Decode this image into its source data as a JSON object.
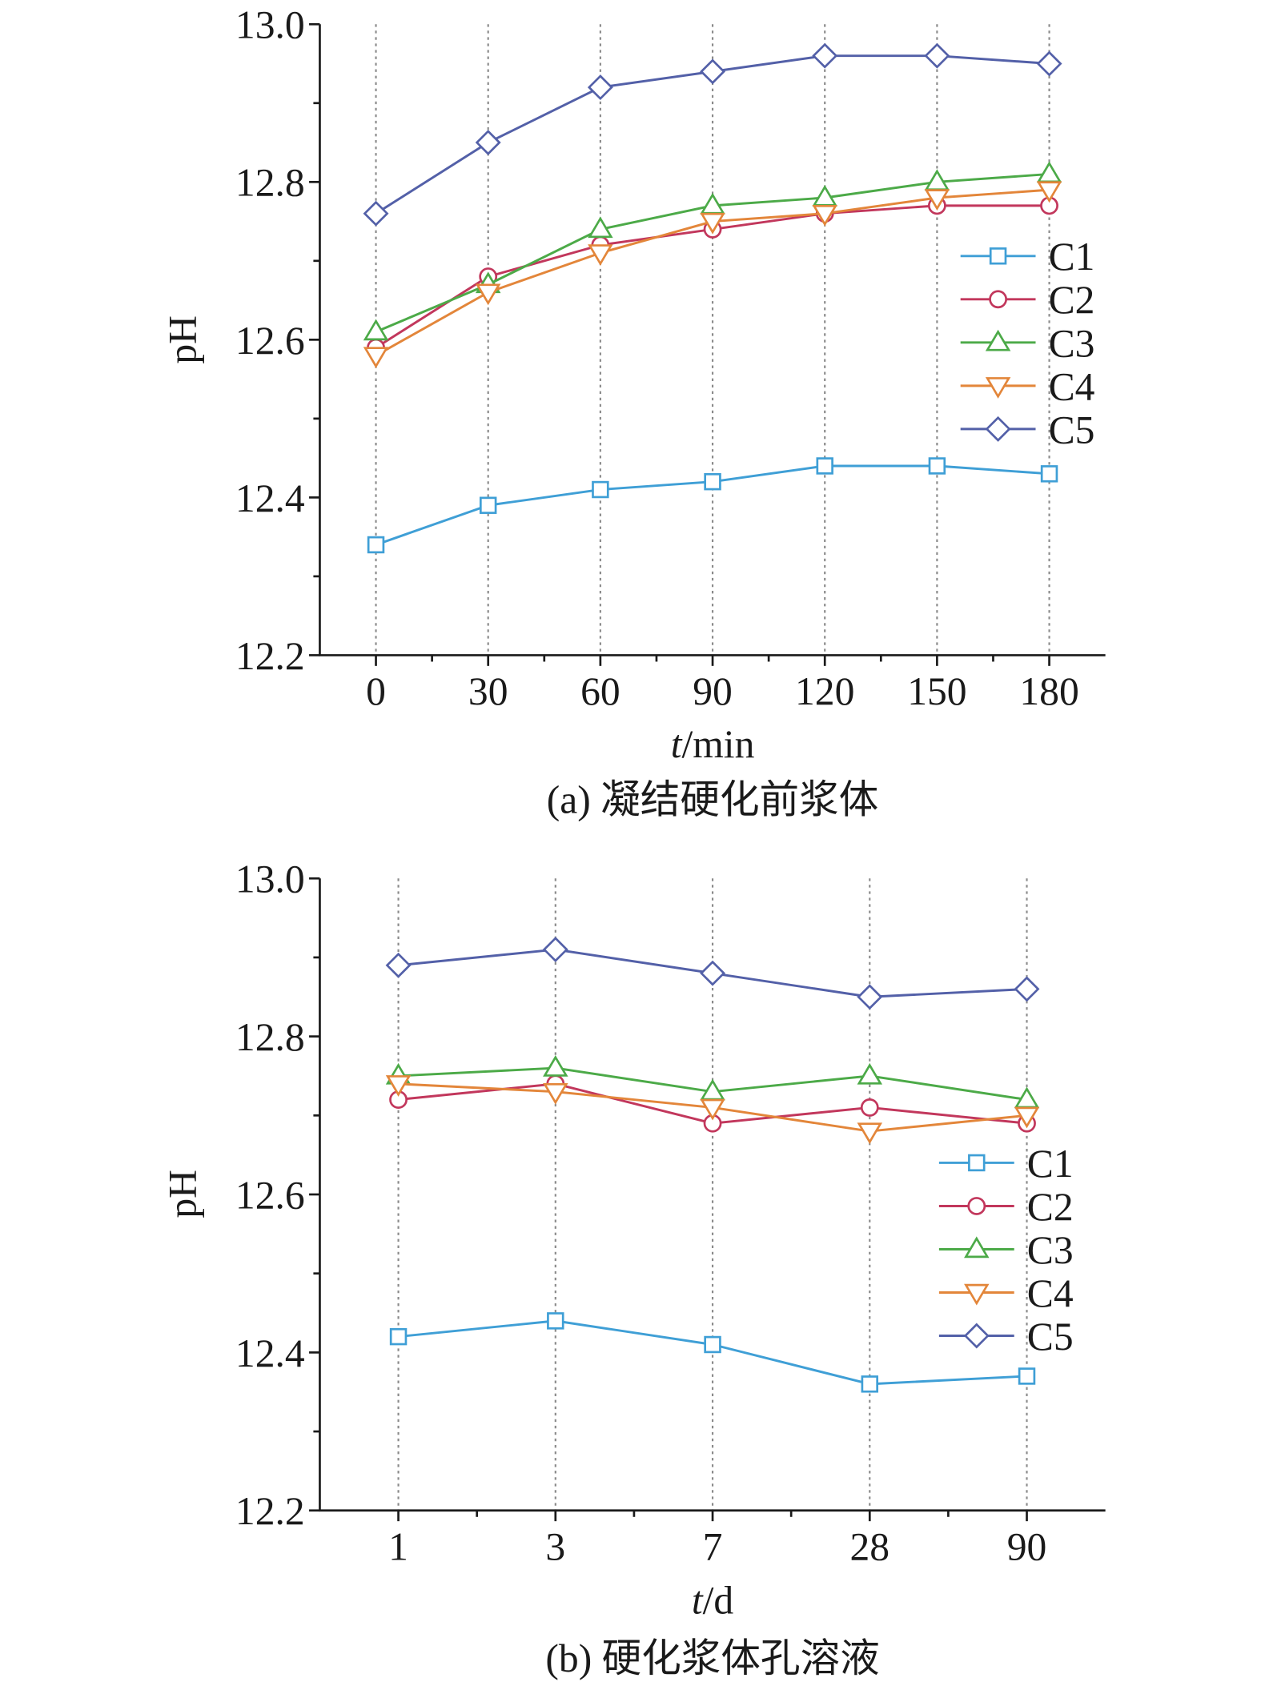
{
  "chart_data": [
    {
      "type": "line",
      "title": "(a) 凝结硬化前浆体",
      "xlabel": {
        "symbol": "t",
        "unit": "/min"
      },
      "ylabel": "pH",
      "categories": [
        "0",
        "30",
        "60",
        "90",
        "120",
        "150",
        "180"
      ],
      "ytick_labels": [
        "12.2",
        "12.4",
        "12.6",
        "12.8",
        "13.0"
      ],
      "ylim": [
        12.2,
        13.0
      ],
      "xgrid": true,
      "ygrid": false,
      "legend": "right",
      "series": [
        {
          "name": "C1",
          "color": "#3f9fd6",
          "marker": "square",
          "values": [
            12.34,
            12.39,
            12.41,
            12.42,
            12.44,
            12.44,
            12.43
          ]
        },
        {
          "name": "C2",
          "color": "#c2375c",
          "marker": "circle",
          "values": [
            12.59,
            12.68,
            12.72,
            12.74,
            12.76,
            12.77,
            12.77
          ]
        },
        {
          "name": "C3",
          "color": "#4caa48",
          "marker": "triangle-up",
          "values": [
            12.61,
            12.67,
            12.74,
            12.77,
            12.78,
            12.8,
            12.81
          ]
        },
        {
          "name": "C4",
          "color": "#e3863a",
          "marker": "triangle-down",
          "values": [
            12.58,
            12.66,
            12.71,
            12.75,
            12.76,
            12.78,
            12.79
          ]
        },
        {
          "name": "C5",
          "color": "#5360a8",
          "marker": "diamond",
          "values": [
            12.76,
            12.85,
            12.92,
            12.94,
            12.96,
            12.96,
            12.95
          ]
        }
      ]
    },
    {
      "type": "line",
      "title": "(b) 硬化浆体孔溶液",
      "xlabel": {
        "symbol": "t",
        "unit": "/d"
      },
      "ylabel": "pH",
      "categories": [
        "1",
        "3",
        "7",
        "28",
        "90"
      ],
      "ytick_labels": [
        "12.2",
        "12.4",
        "12.6",
        "12.8",
        "13.0"
      ],
      "ylim": [
        12.2,
        13.0
      ],
      "xgrid": true,
      "ygrid": false,
      "legend": "right",
      "series": [
        {
          "name": "C1",
          "color": "#3f9fd6",
          "marker": "square",
          "values": [
            12.42,
            12.44,
            12.41,
            12.36,
            12.37
          ]
        },
        {
          "name": "C2",
          "color": "#c2375c",
          "marker": "circle",
          "values": [
            12.72,
            12.74,
            12.69,
            12.71,
            12.69
          ]
        },
        {
          "name": "C3",
          "color": "#4caa48",
          "marker": "triangle-up",
          "values": [
            12.75,
            12.76,
            12.73,
            12.75,
            12.72
          ]
        },
        {
          "name": "C4",
          "color": "#e3863a",
          "marker": "triangle-down",
          "values": [
            12.74,
            12.73,
            12.71,
            12.68,
            12.7
          ]
        },
        {
          "name": "C5",
          "color": "#5360a8",
          "marker": "diamond",
          "values": [
            12.89,
            12.91,
            12.88,
            12.85,
            12.86
          ]
        }
      ]
    }
  ]
}
